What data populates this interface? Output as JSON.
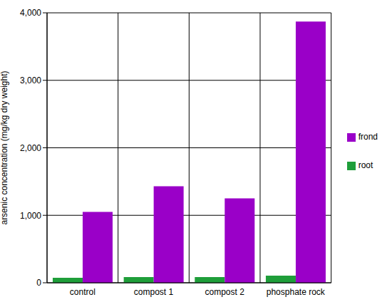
{
  "chart_data": {
    "type": "bar",
    "y_label": "arsenic concentration (mg/kg dry weight)",
    "categories": [
      "control",
      "compost 1",
      "compost 2",
      "phosphate rock"
    ],
    "series": [
      {
        "name": "root",
        "color": "#1f9e3a",
        "values": [
          75,
          85,
          85,
          105
        ]
      },
      {
        "name": "frond",
        "color": "#9a00c8",
        "values": [
          1050,
          1430,
          1250,
          3870
        ]
      }
    ],
    "ylim": [
      0,
      4000
    ],
    "yticks": [
      0,
      {
        "value": 1000,
        "label": "1,000"
      },
      {
        "value": 2000,
        "label": "2,000"
      },
      {
        "value": 3000,
        "label": "3,000"
      },
      {
        "value": 4000,
        "label": "4,000"
      }
    ],
    "grid": true,
    "legend": "right"
  }
}
